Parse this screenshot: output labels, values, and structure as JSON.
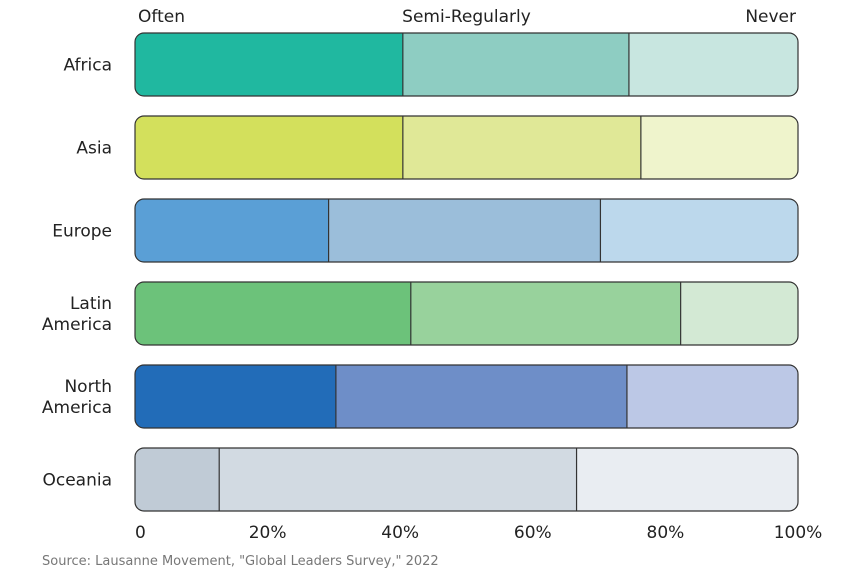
{
  "chart_data": {
    "type": "bar",
    "orientation": "horizontal",
    "stacked": true,
    "stack_headers": [
      "Often",
      "Semi-Regularly",
      "Never"
    ],
    "categories": [
      [
        "Africa"
      ],
      [
        "Asia"
      ],
      [
        "Europe"
      ],
      [
        "Latin",
        "America"
      ],
      [
        "North",
        "America"
      ],
      [
        "Oceania"
      ]
    ],
    "series": [
      {
        "name": "Often",
        "values": [
          40.4,
          40.4,
          29.2,
          41.6,
          30.3,
          12.7
        ]
      },
      {
        "name": "Semi-Regularly",
        "values": [
          34.1,
          35.9,
          41.0,
          40.7,
          43.9,
          53.9
        ]
      },
      {
        "name": "Never",
        "values": [
          25.5,
          23.7,
          29.8,
          17.7,
          25.8,
          33.4
        ]
      }
    ],
    "colors": [
      [
        "#20b8a0",
        "#8ecdc2",
        "#c8e6e0"
      ],
      [
        "#d3e05c",
        "#e0e897",
        "#eff4cc"
      ],
      [
        "#5a9fd6",
        "#9bbeda",
        "#bcd8ec"
      ],
      [
        "#6cc27a",
        "#98d29c",
        "#d3e9d4"
      ],
      [
        "#226cb8",
        "#6e8ec8",
        "#bcc8e6"
      ],
      [
        "#c0cbd6",
        "#d2dae2",
        "#e9edf2"
      ]
    ],
    "x_ticks": [
      "0",
      "20%",
      "40%",
      "60%",
      "80%",
      "100%"
    ],
    "xlim": [
      0,
      100
    ],
    "grid": false,
    "legend": "top"
  },
  "source": "Source: Lausanne Movement, \"Global Leaders Survey,\" 2022"
}
